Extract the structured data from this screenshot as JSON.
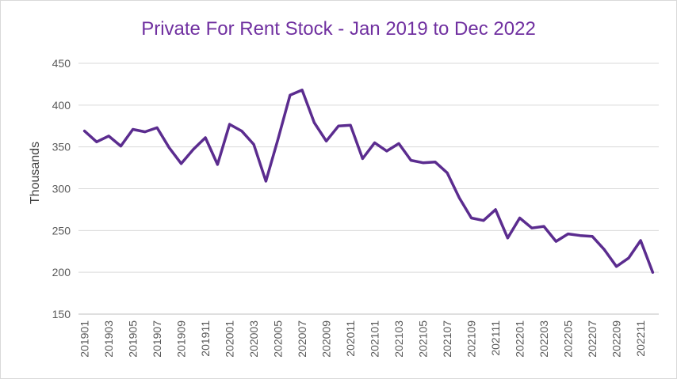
{
  "chart_data": {
    "type": "line",
    "title": "Private For Rent Stock - Jan 2019 to Dec 2022",
    "xlabel": "",
    "ylabel": "Thousands",
    "ylim": [
      150,
      450
    ],
    "yticks": [
      150,
      200,
      250,
      300,
      350,
      400,
      450
    ],
    "grid": true,
    "legend": "none",
    "line_color": "#5b2c8f",
    "title_color": "#7030a0",
    "x_tick_labels": [
      "201901",
      "201903",
      "201905",
      "201907",
      "201909",
      "201911",
      "202001",
      "202003",
      "202005",
      "202007",
      "202009",
      "202011",
      "202101",
      "202103",
      "202105",
      "202107",
      "202109",
      "202111",
      "202201",
      "202203",
      "202205",
      "202207",
      "202209",
      "202211"
    ],
    "x": [
      "201901",
      "201902",
      "201903",
      "201904",
      "201905",
      "201906",
      "201907",
      "201908",
      "201909",
      "201910",
      "201911",
      "201912",
      "202001",
      "202002",
      "202003",
      "202004",
      "202005",
      "202006",
      "202007",
      "202008",
      "202009",
      "202010",
      "202011",
      "202012",
      "202101",
      "202102",
      "202103",
      "202104",
      "202105",
      "202106",
      "202107",
      "202108",
      "202109",
      "202110",
      "202111",
      "202112",
      "202201",
      "202202",
      "202203",
      "202204",
      "202205",
      "202206",
      "202207",
      "202208",
      "202209",
      "202210",
      "202211",
      "202212"
    ],
    "series": [
      {
        "values": [
          369,
          356,
          363,
          351,
          371,
          368,
          373,
          349,
          330,
          347,
          361,
          329,
          377,
          369,
          353,
          309,
          359,
          412,
          418,
          379,
          357,
          375,
          376,
          336,
          355,
          345,
          354,
          334,
          331,
          332,
          319,
          289,
          265,
          262,
          275,
          241,
          265,
          253,
          255,
          237,
          246,
          244,
          243,
          227,
          207,
          217,
          238,
          200
        ]
      }
    ]
  }
}
